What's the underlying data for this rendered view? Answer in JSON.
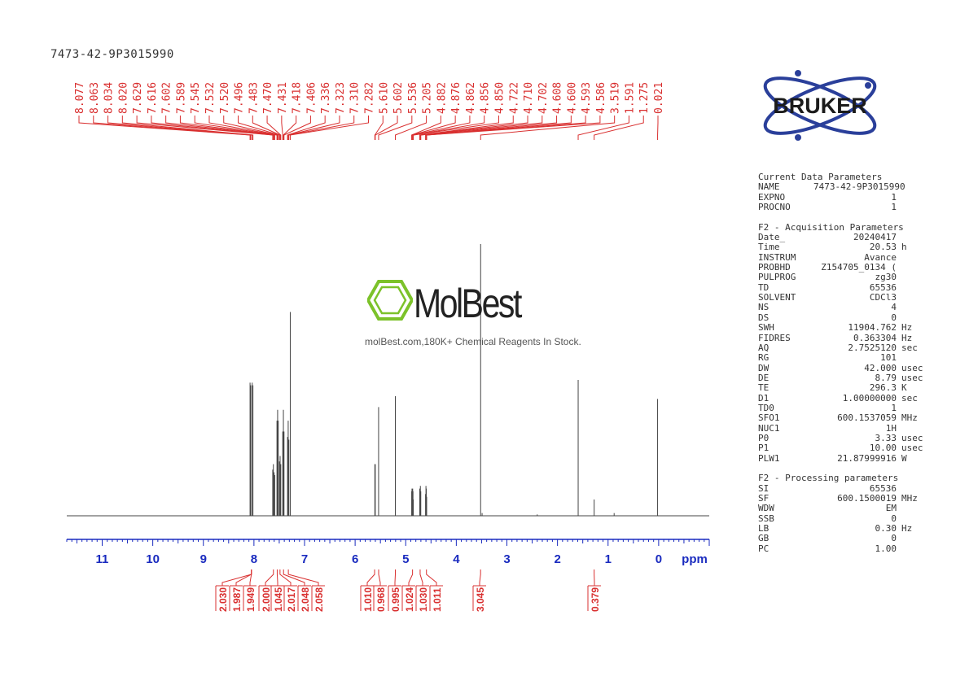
{
  "sample_name": "7473-42-9P3015990",
  "watermark": {
    "brand": "MolBest",
    "tagline": "molBest.com,180K+ Chemical Reagents In Stock."
  },
  "logo": {
    "text": "BRUKER",
    "color": "#2a3f9a"
  },
  "colors": {
    "peak_labels": "#d93030",
    "axis": "#1a2bbf",
    "trace": "#444444"
  },
  "parameters": {
    "current": {
      "title": "Current Data Parameters",
      "rows": [
        {
          "name": "NAME",
          "value": "7473-42-9P3015990",
          "unit": ""
        },
        {
          "name": "EXPNO",
          "value": "1",
          "unit": ""
        },
        {
          "name": "PROCNO",
          "value": "1",
          "unit": ""
        }
      ]
    },
    "acquisition": {
      "title": "F2 - Acquisition Parameters",
      "rows": [
        {
          "name": "Date_",
          "value": "20240417",
          "unit": ""
        },
        {
          "name": "Time",
          "value": "20.53",
          "unit": "h"
        },
        {
          "name": "INSTRUM",
          "value": "Avance",
          "unit": ""
        },
        {
          "name": "PROBHD",
          "value": "Z154705_0134 (",
          "unit": ""
        },
        {
          "name": "PULPROG",
          "value": "zg30",
          "unit": ""
        },
        {
          "name": "TD",
          "value": "65536",
          "unit": ""
        },
        {
          "name": "SOLVENT",
          "value": "CDCl3",
          "unit": ""
        },
        {
          "name": "NS",
          "value": "4",
          "unit": ""
        },
        {
          "name": "DS",
          "value": "0",
          "unit": ""
        },
        {
          "name": "SWH",
          "value": "11904.762",
          "unit": "Hz"
        },
        {
          "name": "FIDRES",
          "value": "0.363304",
          "unit": "Hz"
        },
        {
          "name": "AQ",
          "value": "2.7525120",
          "unit": "sec"
        },
        {
          "name": "RG",
          "value": "101",
          "unit": ""
        },
        {
          "name": "DW",
          "value": "42.000",
          "unit": "usec"
        },
        {
          "name": "DE",
          "value": "8.79",
          "unit": "usec"
        },
        {
          "name": "TE",
          "value": "296.3",
          "unit": "K"
        },
        {
          "name": "D1",
          "value": "1.00000000",
          "unit": "sec"
        },
        {
          "name": "TD0",
          "value": "1",
          "unit": ""
        },
        {
          "name": "SFO1",
          "value": "600.1537059",
          "unit": "MHz"
        },
        {
          "name": "NUC1",
          "value": "1H",
          "unit": ""
        },
        {
          "name": "P0",
          "value": "3.33",
          "unit": "usec"
        },
        {
          "name": "P1",
          "value": "10.00",
          "unit": "usec"
        },
        {
          "name": "PLW1",
          "value": "21.87999916",
          "unit": "W"
        }
      ]
    },
    "processing": {
      "title": "F2 - Processing parameters",
      "rows": [
        {
          "name": "SI",
          "value": "65536",
          "unit": ""
        },
        {
          "name": "SF",
          "value": "600.1500019",
          "unit": "MHz"
        },
        {
          "name": "WDW",
          "value": "EM",
          "unit": ""
        },
        {
          "name": "SSB",
          "value": "0",
          "unit": ""
        },
        {
          "name": "LB",
          "value": "0.30",
          "unit": "Hz"
        },
        {
          "name": "GB",
          "value": "0",
          "unit": ""
        },
        {
          "name": "PC",
          "value": "1.00",
          "unit": ""
        }
      ]
    }
  },
  "chart_data": {
    "type": "line",
    "title": "",
    "xlabel": "ppm",
    "xlim": [
      11.7,
      -1.0
    ],
    "x_reversed": true,
    "x_ticks": [
      "11",
      "10",
      "9",
      "8",
      "7",
      "6",
      "5",
      "4",
      "3",
      "2",
      "1",
      "0"
    ],
    "peak_labels": [
      "8.077",
      "8.063",
      "8.034",
      "8.020",
      "7.629",
      "7.616",
      "7.602",
      "7.589",
      "7.545",
      "7.532",
      "7.520",
      "7.496",
      "7.483",
      "7.470",
      "7.431",
      "7.418",
      "7.406",
      "7.336",
      "7.323",
      "7.310",
      "7.282",
      "5.610",
      "5.602",
      "5.536",
      "5.205",
      "4.882",
      "4.876",
      "4.862",
      "4.856",
      "4.850",
      "4.722",
      "4.710",
      "4.702",
      "4.608",
      "4.600",
      "4.593",
      "4.586",
      "3.519",
      "1.591",
      "1.275",
      "0.021"
    ],
    "peaks": [
      {
        "ppm": 8.077,
        "height": 0.49
      },
      {
        "ppm": 8.063,
        "height": 0.48
      },
      {
        "ppm": 8.034,
        "height": 0.49
      },
      {
        "ppm": 8.02,
        "height": 0.48
      },
      {
        "ppm": 7.629,
        "height": 0.17
      },
      {
        "ppm": 7.616,
        "height": 0.19
      },
      {
        "ppm": 7.602,
        "height": 0.16
      },
      {
        "ppm": 7.589,
        "height": 0.15
      },
      {
        "ppm": 7.545,
        "height": 0.35
      },
      {
        "ppm": 7.532,
        "height": 0.39
      },
      {
        "ppm": 7.52,
        "height": 0.35
      },
      {
        "ppm": 7.496,
        "height": 0.2
      },
      {
        "ppm": 7.483,
        "height": 0.22
      },
      {
        "ppm": 7.47,
        "height": 0.19
      },
      {
        "ppm": 7.431,
        "height": 0.31
      },
      {
        "ppm": 7.418,
        "height": 0.39
      },
      {
        "ppm": 7.406,
        "height": 0.31
      },
      {
        "ppm": 7.336,
        "height": 0.29
      },
      {
        "ppm": 7.323,
        "height": 0.35
      },
      {
        "ppm": 7.31,
        "height": 0.28
      },
      {
        "ppm": 7.282,
        "height": 0.75
      },
      {
        "ppm": 5.61,
        "height": 0.19
      },
      {
        "ppm": 5.602,
        "height": 0.19
      },
      {
        "ppm": 5.536,
        "height": 0.4
      },
      {
        "ppm": 5.205,
        "height": 0.44
      },
      {
        "ppm": 4.882,
        "height": 0.09
      },
      {
        "ppm": 4.876,
        "height": 0.1
      },
      {
        "ppm": 4.862,
        "height": 0.1
      },
      {
        "ppm": 4.856,
        "height": 0.09
      },
      {
        "ppm": 4.85,
        "height": 0.06
      },
      {
        "ppm": 4.722,
        "height": 0.1
      },
      {
        "ppm": 4.71,
        "height": 0.11
      },
      {
        "ppm": 4.702,
        "height": 0.09
      },
      {
        "ppm": 4.608,
        "height": 0.08
      },
      {
        "ppm": 4.6,
        "height": 0.11
      },
      {
        "ppm": 4.593,
        "height": 0.1
      },
      {
        "ppm": 4.586,
        "height": 0.07
      },
      {
        "ppm": 3.519,
        "height": 1.0
      },
      {
        "ppm": 3.49,
        "height": 0.01
      },
      {
        "ppm": 2.4,
        "height": 0.005
      },
      {
        "ppm": 1.591,
        "height": 0.5
      },
      {
        "ppm": 1.275,
        "height": 0.06
      },
      {
        "ppm": 0.88,
        "height": 0.01
      },
      {
        "ppm": 0.021,
        "height": 0.43
      }
    ],
    "integrals": [
      {
        "label": "2.030",
        "from": 8.2,
        "to": 7.9
      },
      {
        "label": "1.987",
        "from": 8.2,
        "to": 7.9
      },
      {
        "label": "1.949",
        "from": 8.2,
        "to": 7.9
      },
      {
        "label": "2.000",
        "from": 7.66,
        "to": 7.57
      },
      {
        "label": "1.045",
        "from": 7.57,
        "to": 7.51
      },
      {
        "label": "2.017",
        "from": 7.51,
        "to": 7.46
      },
      {
        "label": "2.048",
        "from": 7.44,
        "to": 7.39
      },
      {
        "label": "2.058",
        "from": 7.35,
        "to": 7.29
      },
      {
        "label": "1.010",
        "from": 5.65,
        "to": 5.58
      },
      {
        "label": "0.968",
        "from": 5.57,
        "to": 5.5
      },
      {
        "label": "0.995",
        "from": 5.25,
        "to": 5.16
      },
      {
        "label": "1.024",
        "from": 4.9,
        "to": 4.83
      },
      {
        "label": "1.030",
        "from": 4.75,
        "to": 4.68
      },
      {
        "label": "1.011",
        "from": 4.62,
        "to": 4.56
      },
      {
        "label": "3.045",
        "from": 3.56,
        "to": 3.48
      },
      {
        "label": "0.379",
        "from": 1.31,
        "to": 1.24
      }
    ]
  }
}
